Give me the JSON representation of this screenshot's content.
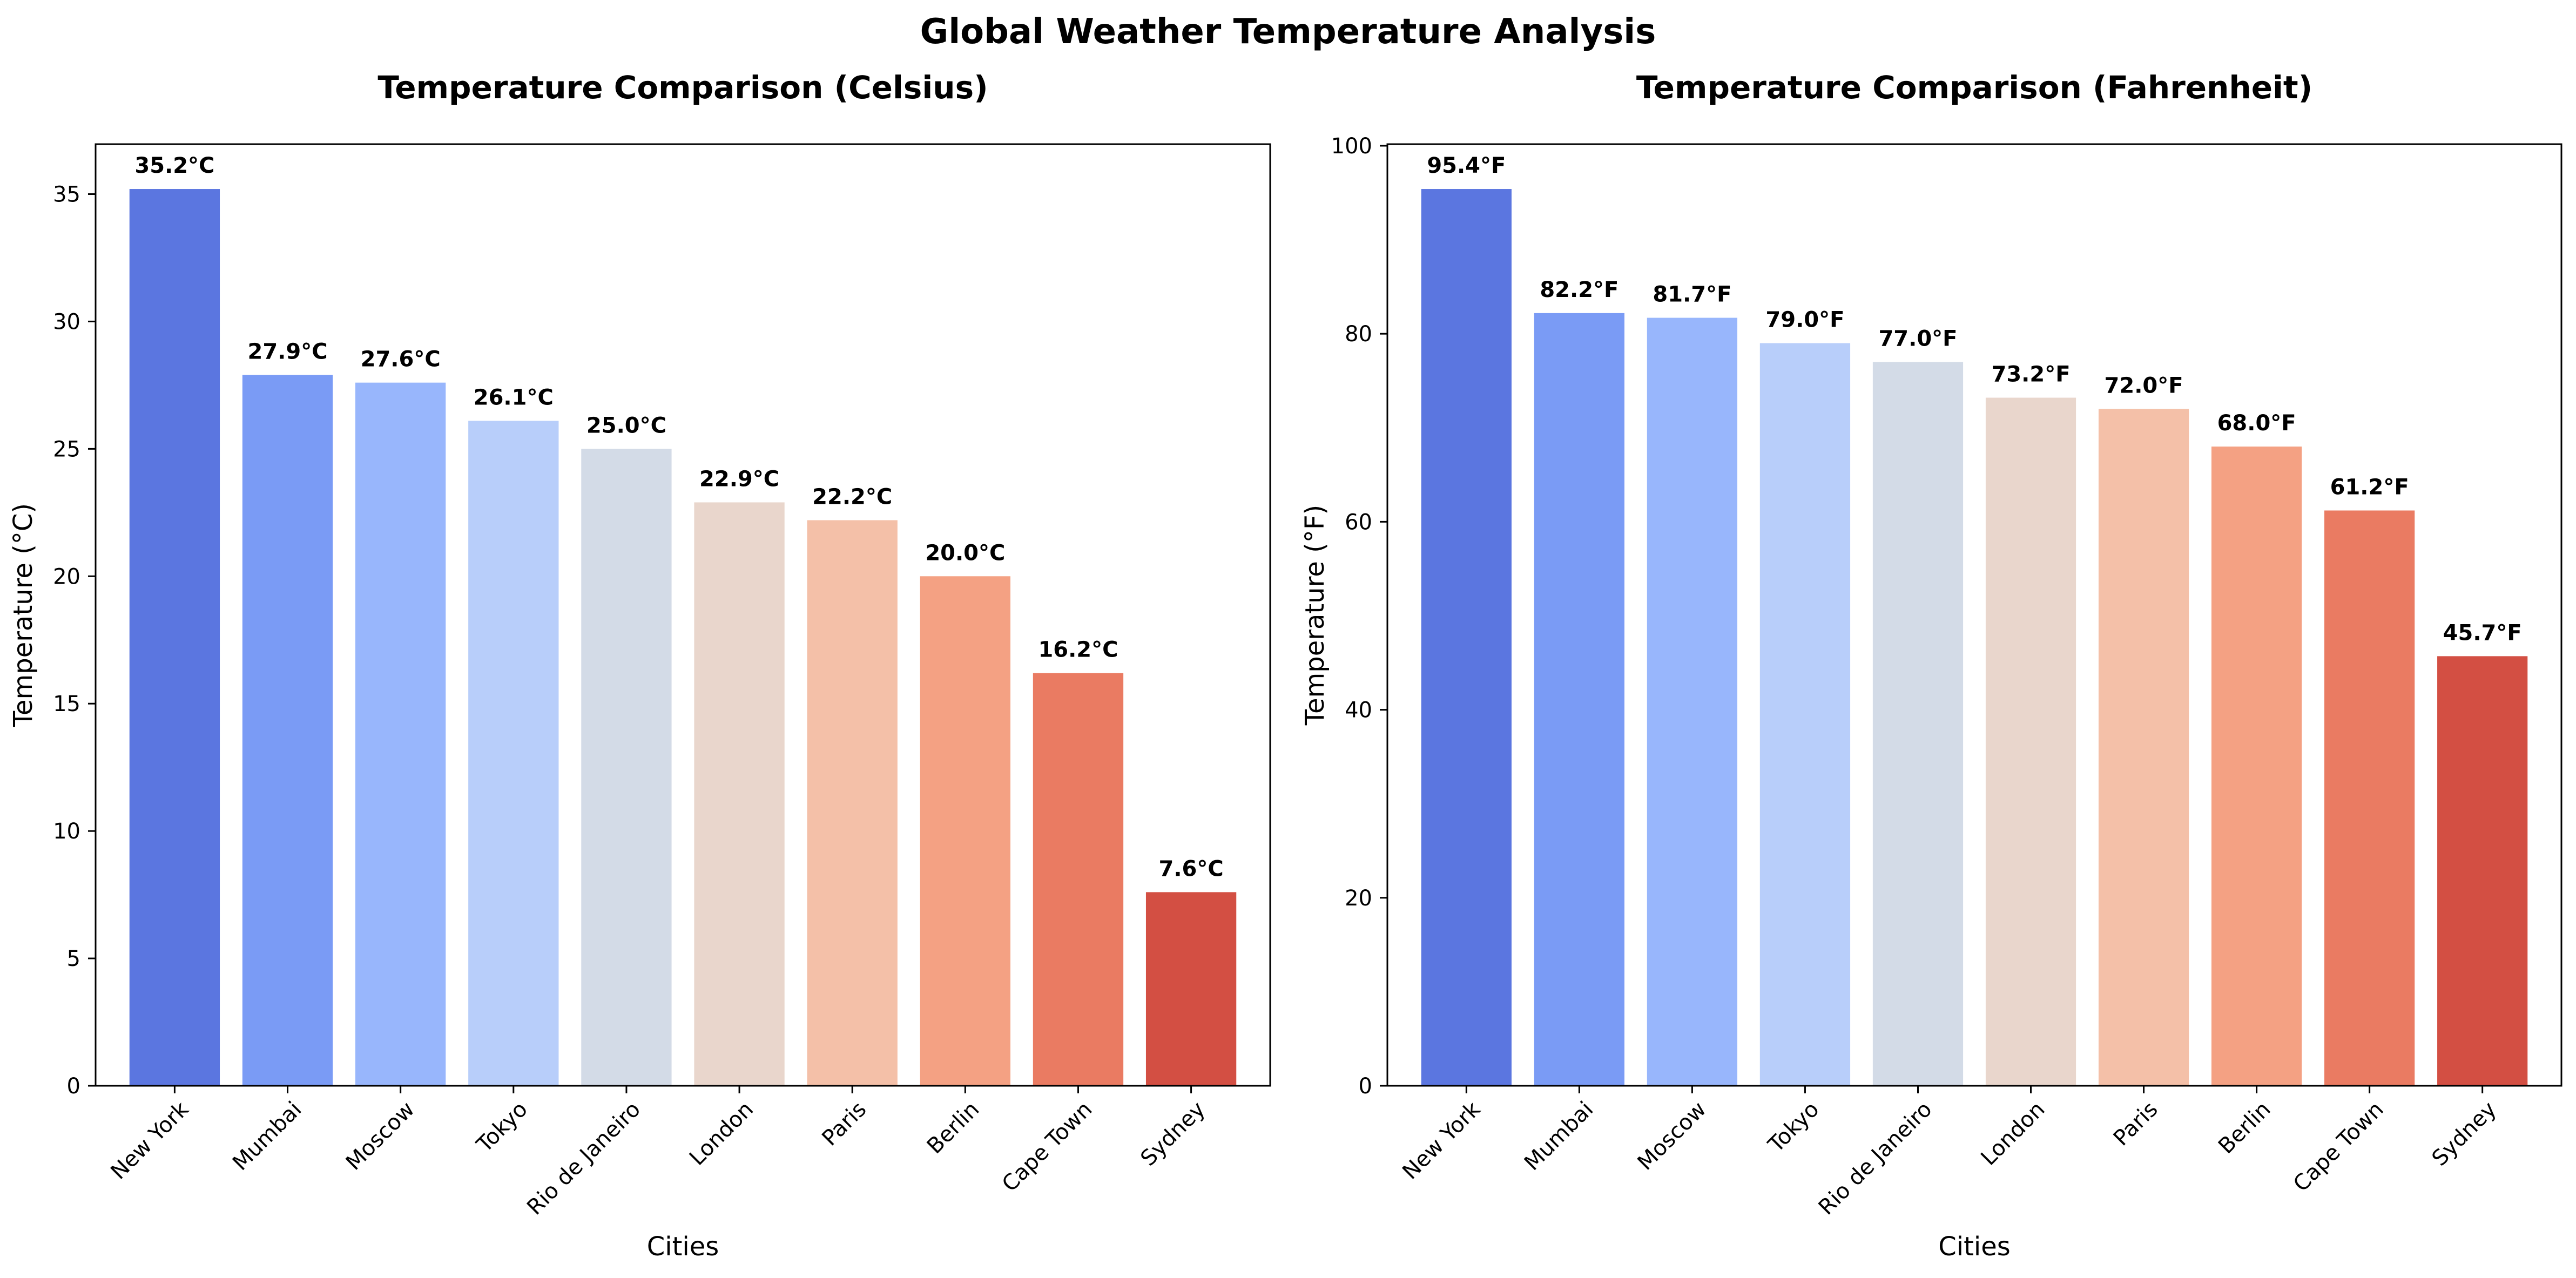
{
  "figure": {
    "title": "Global Weather Temperature Analysis"
  },
  "chart_data": [
    {
      "type": "bar",
      "title": "Temperature Comparison (Celsius)",
      "xlabel": "Cities",
      "ylabel": "Temperature (°C)",
      "categories": [
        "New York",
        "Mumbai",
        "Moscow",
        "Tokyo",
        "Rio de Janeiro",
        "London",
        "Paris",
        "Berlin",
        "Cape Town",
        "Sydney"
      ],
      "values": [
        35.2,
        27.9,
        27.6,
        26.1,
        25.0,
        22.9,
        22.2,
        20.0,
        16.2,
        7.6
      ],
      "data_labels": [
        "35.2°C",
        "27.9°C",
        "27.6°C",
        "26.1°C",
        "25.0°C",
        "22.9°C",
        "22.2°C",
        "20.0°C",
        "16.2°C",
        "7.6°C"
      ],
      "yticks": [
        0,
        5,
        10,
        15,
        20,
        25,
        30,
        35
      ],
      "ylim": [
        0,
        36.96
      ],
      "grid": false,
      "colors": [
        "#5b76e0",
        "#7a9bf5",
        "#98b6fc",
        "#b8cefa",
        "#d3dbe7",
        "#e9d6cc",
        "#f4c0a8",
        "#f4a183",
        "#ea7b62",
        "#d34f43"
      ]
    },
    {
      "type": "bar",
      "title": "Temperature Comparison (Fahrenheit)",
      "xlabel": "Cities",
      "ylabel": "Temperature (°F)",
      "categories": [
        "New York",
        "Mumbai",
        "Moscow",
        "Tokyo",
        "Rio de Janeiro",
        "London",
        "Paris",
        "Berlin",
        "Cape Town",
        "Sydney"
      ],
      "values": [
        95.4,
        82.2,
        81.7,
        79.0,
        77.0,
        73.2,
        72.0,
        68.0,
        61.2,
        45.7
      ],
      "data_labels": [
        "95.4°F",
        "82.2°F",
        "81.7°F",
        "79.0°F",
        "77.0°F",
        "73.2°F",
        "72.0°F",
        "68.0°F",
        "61.2°F",
        "45.7°F"
      ],
      "yticks": [
        0,
        20,
        40,
        60,
        80,
        100
      ],
      "ylim": [
        0,
        100.17
      ],
      "grid": false,
      "colors": [
        "#5b76e0",
        "#7a9bf5",
        "#98b6fc",
        "#b8cefa",
        "#d3dbe7",
        "#e9d6cc",
        "#f4c0a8",
        "#f4a183",
        "#ea7b62",
        "#d34f43"
      ]
    }
  ]
}
